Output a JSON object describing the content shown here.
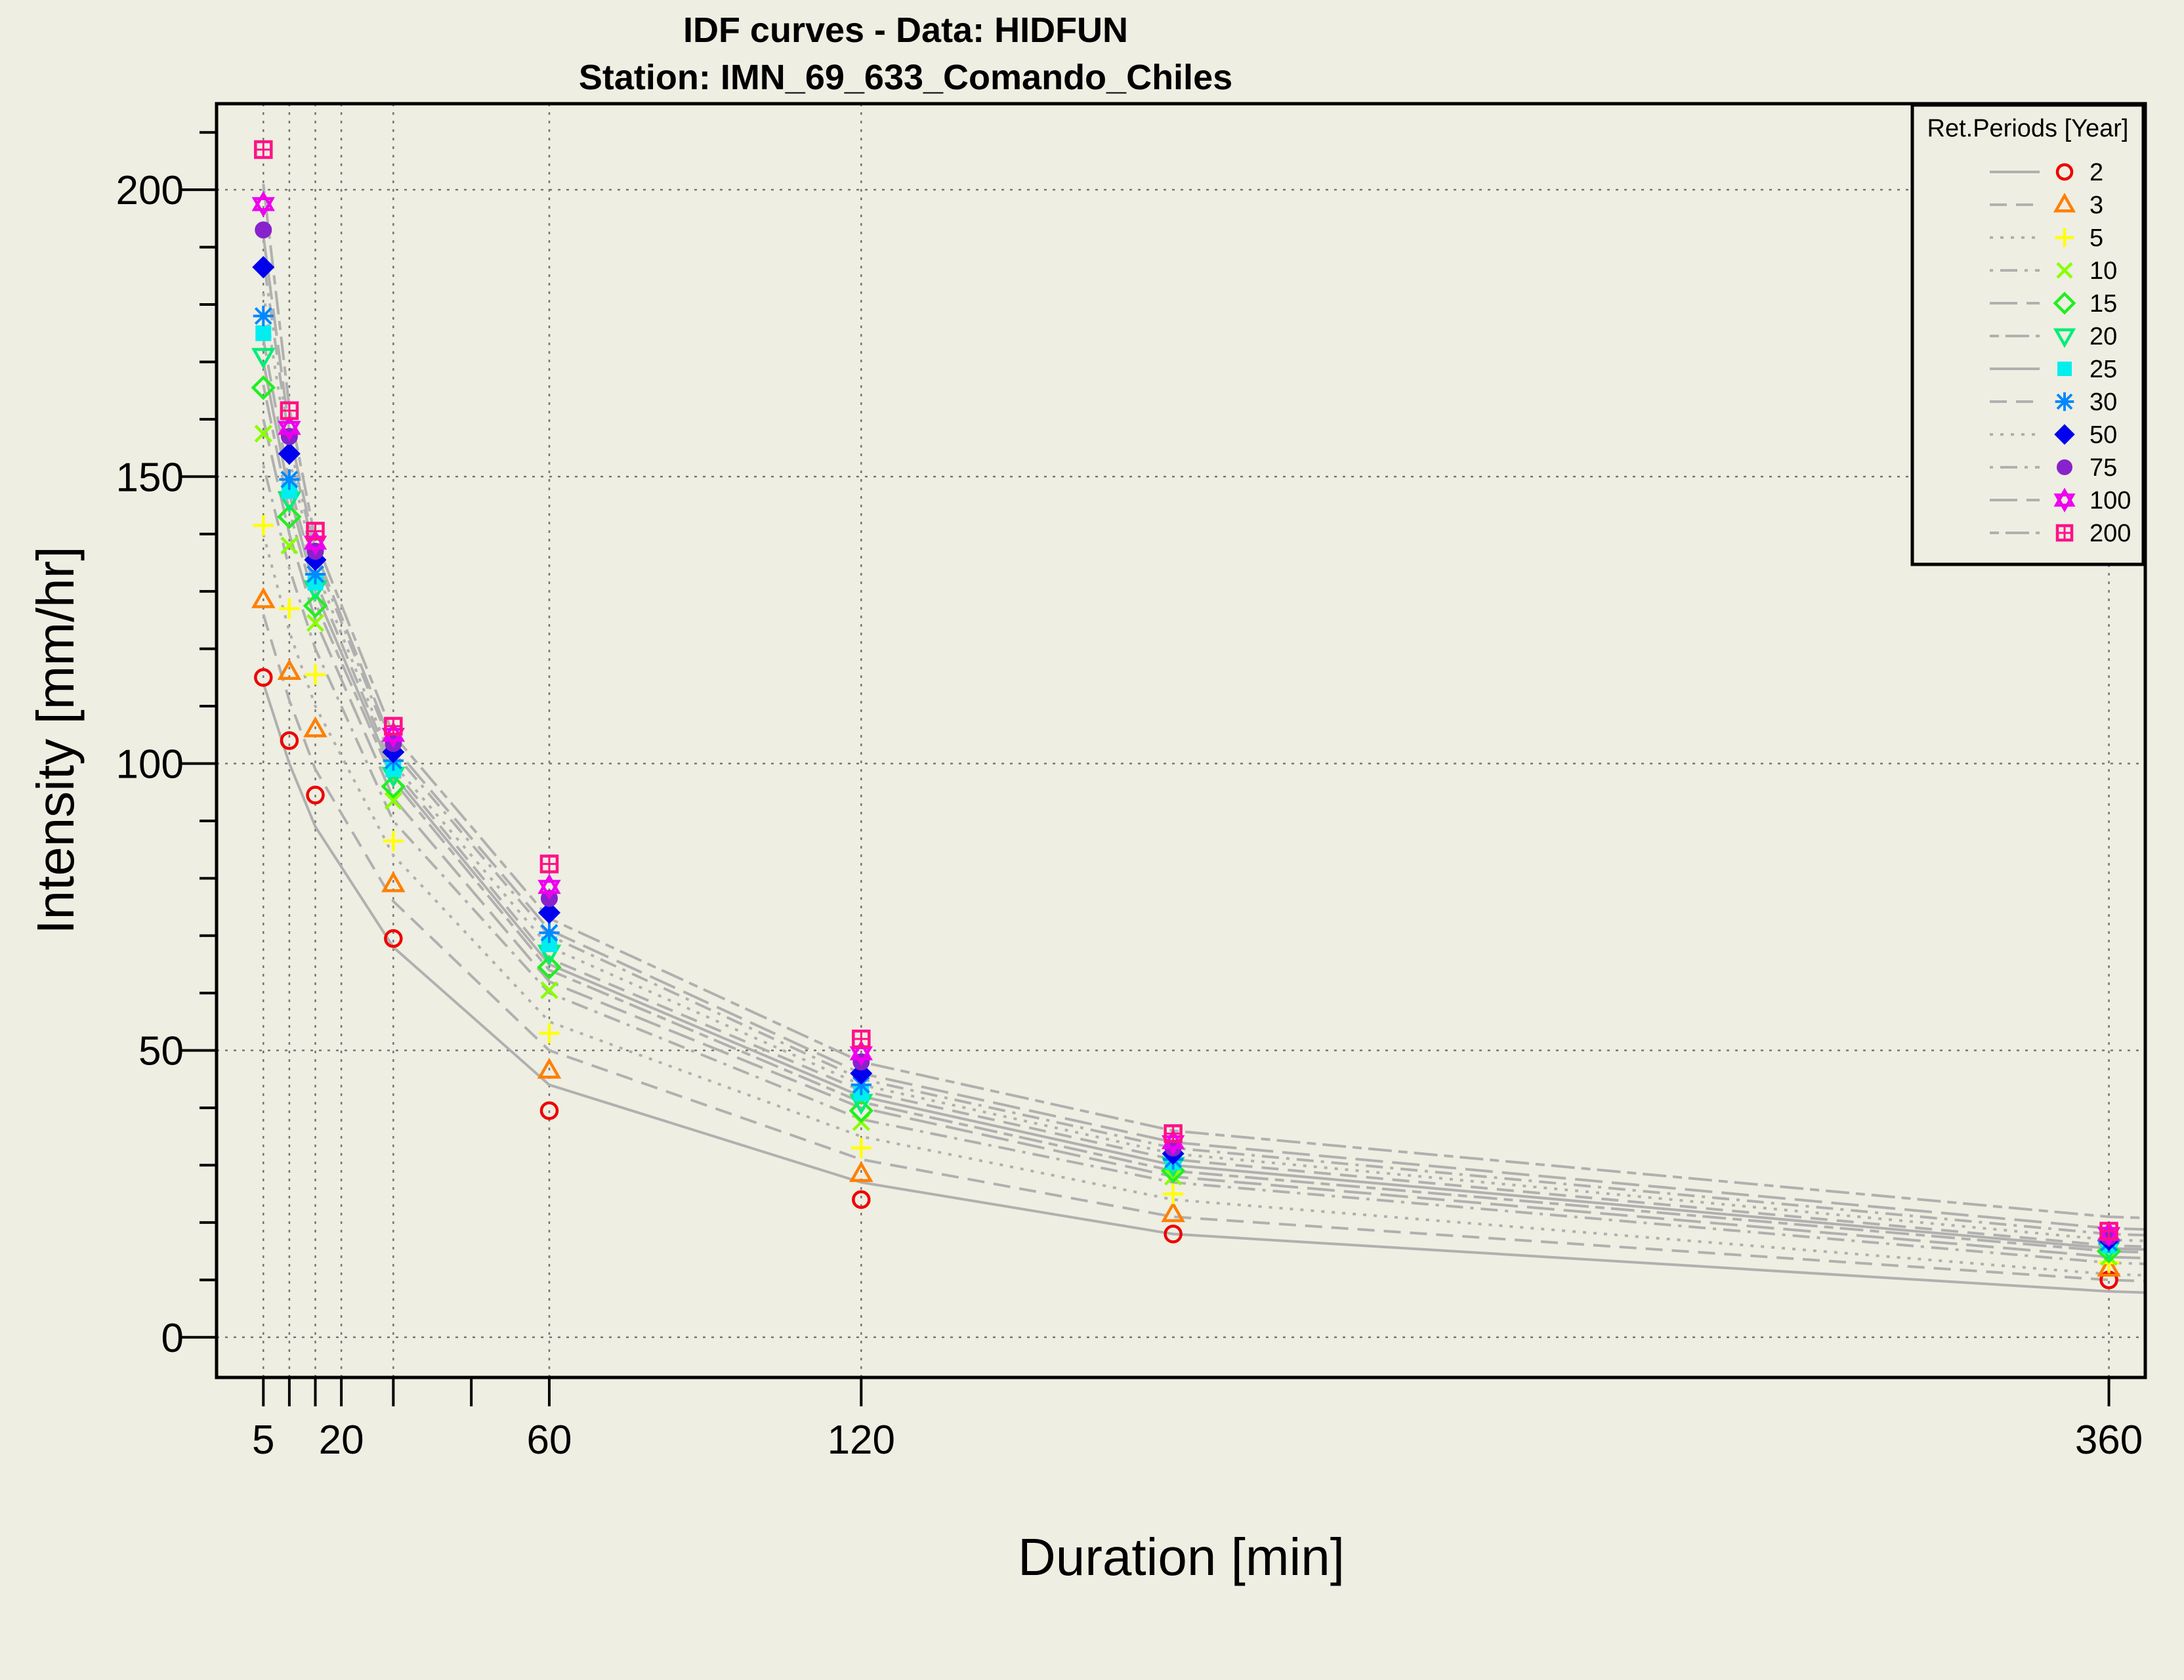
{
  "chart_data": {
    "type": "scatter",
    "title": "IDF curves - Data: HIDFUN",
    "subtitle": "Station: IMN_69_633_Comando_Chiles",
    "xlabel": "Duration [min]",
    "ylabel": "Intensity [mm/hr]",
    "xlim": [
      -4,
      367
    ],
    "ylim": [
      -7,
      215
    ],
    "x_ticks_labeled": [
      5,
      20,
      60,
      120,
      360
    ],
    "x_ticks_unlabeled": [
      10,
      15,
      30,
      45
    ],
    "y_ticks_labeled": [
      0,
      50,
      100,
      150,
      200
    ],
    "y_minor_ticks": [
      10,
      20,
      30,
      40,
      60,
      70,
      80,
      90,
      110,
      120,
      130,
      140,
      160,
      170,
      180,
      190,
      210
    ],
    "x_grid": [
      5,
      10,
      15,
      20,
      30,
      60,
      120,
      360
    ],
    "y_grid": [
      0,
      50,
      100,
      150,
      200
    ],
    "grid": true,
    "legend_title": "Ret.Periods [Year]",
    "legend_position": "top-right",
    "durations": [
      5,
      10,
      15,
      30,
      60,
      120,
      180,
      360
    ],
    "series": [
      {
        "name": "2",
        "color": "#ee0000",
        "marker": "circle-open",
        "line": "solid",
        "values": [
          115,
          104,
          94.5,
          69.5,
          39.5,
          24,
          18,
          10
        ]
      },
      {
        "name": "3",
        "color": "#ff7f00",
        "marker": "triangle-up",
        "line": "dashed",
        "values": [
          128.5,
          116,
          106,
          79,
          46.5,
          28.5,
          21.5,
          12
        ]
      },
      {
        "name": "5",
        "color": "#ffff00",
        "marker": "plus",
        "line": "dotted",
        "values": [
          141.5,
          127,
          115.5,
          86.5,
          53,
          33,
          25,
          13
        ]
      },
      {
        "name": "10",
        "color": "#88ff00",
        "marker": "cross",
        "line": "dashdot",
        "values": [
          157.5,
          138,
          124.5,
          93.5,
          60.5,
          37.5,
          28,
          14
        ]
      },
      {
        "name": "15",
        "color": "#22ee22",
        "marker": "diamond-open",
        "line": "longdash",
        "values": [
          165.5,
          143,
          127.5,
          96,
          64.5,
          39.5,
          29,
          15
        ]
      },
      {
        "name": "20",
        "color": "#00ee77",
        "marker": "triangle-down",
        "line": "twodash",
        "values": [
          171,
          146,
          130.5,
          98,
          67,
          41,
          30,
          15.5
        ]
      },
      {
        "name": "25",
        "color": "#00eeee",
        "marker": "square",
        "line": "solid",
        "values": [
          175,
          147.5,
          131.5,
          99,
          68.5,
          42.5,
          30.5,
          16
        ]
      },
      {
        "name": "30",
        "color": "#0088ff",
        "marker": "asterisk",
        "line": "dashed",
        "values": [
          178,
          149.5,
          133,
          100.5,
          70.5,
          44,
          31,
          16.5
        ]
      },
      {
        "name": "50",
        "color": "#0000ee",
        "marker": "diamond",
        "line": "dotted",
        "values": [
          186.5,
          154,
          135.5,
          102,
          74,
          46,
          32,
          17
        ]
      },
      {
        "name": "75",
        "color": "#8822cc",
        "marker": "circle",
        "line": "dashdot",
        "values": [
          193,
          157,
          137,
          103.5,
          76.5,
          48,
          33,
          17.5
        ]
      },
      {
        "name": "100",
        "color": "#ee00ee",
        "marker": "star",
        "line": "longdash",
        "values": [
          197.5,
          158.5,
          138.5,
          105,
          78.5,
          49.5,
          34,
          18
        ]
      },
      {
        "name": "200",
        "color": "#ff1188",
        "marker": "square-open",
        "line": "twodash",
        "values": [
          207,
          161.5,
          140.5,
          106.5,
          82.5,
          52,
          35.5,
          18.5
        ]
      }
    ],
    "fitted_curve_color": "#b0b0b0",
    "fitted_curves": [
      {
        "name": "2",
        "values_at_durations": [
          114,
          100,
          89,
          68,
          44,
          27,
          18,
          8
        ]
      },
      {
        "name": "3",
        "values_at_durations": [
          126,
          111,
          99,
          76,
          50,
          31,
          21,
          10
        ]
      },
      {
        "name": "5",
        "values_at_durations": [
          140,
          123,
          110,
          84,
          55,
          35,
          24,
          11
        ]
      },
      {
        "name": "10",
        "values_at_durations": [
          152,
          134,
          120,
          90,
          60,
          38,
          27,
          13
        ]
      },
      {
        "name": "15",
        "values_at_durations": [
          160,
          140,
          125,
          94,
          62,
          40,
          28,
          14
        ]
      },
      {
        "name": "20",
        "values_at_durations": [
          166,
          144,
          128,
          97,
          64,
          41,
          29,
          15
        ]
      },
      {
        "name": "25",
        "values_at_durations": [
          170,
          147,
          130,
          98,
          65,
          42,
          30,
          15.5
        ]
      },
      {
        "name": "30",
        "values_at_durations": [
          174,
          149,
          132,
          99,
          66,
          43,
          31,
          16
        ]
      },
      {
        "name": "50",
        "values_at_durations": [
          182,
          153,
          134,
          100,
          68,
          44,
          32,
          17
        ]
      },
      {
        "name": "75",
        "values_at_durations": [
          188,
          156,
          136,
          102,
          70,
          45,
          33,
          18
        ]
      },
      {
        "name": "100",
        "values_at_durations": [
          192,
          158,
          137,
          103,
          71,
          46,
          34,
          19
        ]
      },
      {
        "name": "200",
        "values_at_durations": [
          201,
          162,
          139,
          105,
          73,
          48,
          36,
          21
        ]
      }
    ]
  }
}
